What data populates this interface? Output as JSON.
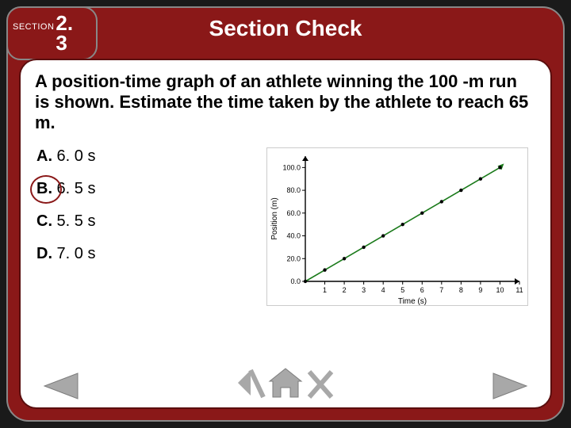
{
  "header": {
    "section_label": "SECTION",
    "section_number": "2.\n3",
    "title": "Section Check"
  },
  "question": "A position-time graph of an athlete winning the 100 -m run is shown. Estimate the time taken by the athlete to reach 65 m.",
  "answers": [
    {
      "letter": "A.",
      "text": " 6. 0 s",
      "selected": false
    },
    {
      "letter": "B.",
      "text": " 6. 5 s",
      "selected": true
    },
    {
      "letter": "C.",
      "text": " 5. 5 s",
      "selected": false
    },
    {
      "letter": "D.",
      "text": " 7. 0 s",
      "selected": false
    }
  ],
  "chart": {
    "type": "line",
    "xlabel": "Time (s)",
    "ylabel": "Position (m)",
    "label_fontsize": 10,
    "tick_fontsize": 9,
    "xlim": [
      0,
      11
    ],
    "ylim": [
      0,
      110
    ],
    "xticks": [
      1,
      2,
      3,
      4,
      5,
      6,
      7,
      8,
      9,
      10,
      11
    ],
    "yticks": [
      0,
      20,
      40,
      60,
      80,
      100
    ],
    "ytick_labels": [
      "0.0",
      "20.0",
      "40.0",
      "60.0",
      "80.0",
      "100.0"
    ],
    "points": [
      {
        "x": 0,
        "y": 0
      },
      {
        "x": 1,
        "y": 10
      },
      {
        "x": 2,
        "y": 20
      },
      {
        "x": 3,
        "y": 30
      },
      {
        "x": 4,
        "y": 40
      },
      {
        "x": 5,
        "y": 50
      },
      {
        "x": 6,
        "y": 60
      },
      {
        "x": 7,
        "y": 70
      },
      {
        "x": 8,
        "y": 80
      },
      {
        "x": 9,
        "y": 90
      },
      {
        "x": 10,
        "y": 100
      }
    ],
    "line_color": "#1a7a1a",
    "point_color": "#000000",
    "axis_color": "#000000",
    "background_color": "#ffffff",
    "marker_radius": 2.2,
    "line_width": 1.6,
    "arrow_heads": true
  },
  "colors": {
    "frame": "#8a1818",
    "frame_border": "#888888",
    "page_bg": "#1a1a1a",
    "panel_bg": "#ffffff",
    "text": "#000000",
    "title_text": "#ffffff",
    "nav_icon": "#9a9a9a"
  },
  "nav": {
    "prev": "previous",
    "back": "back",
    "home": "home",
    "close": "close",
    "next": "next"
  }
}
